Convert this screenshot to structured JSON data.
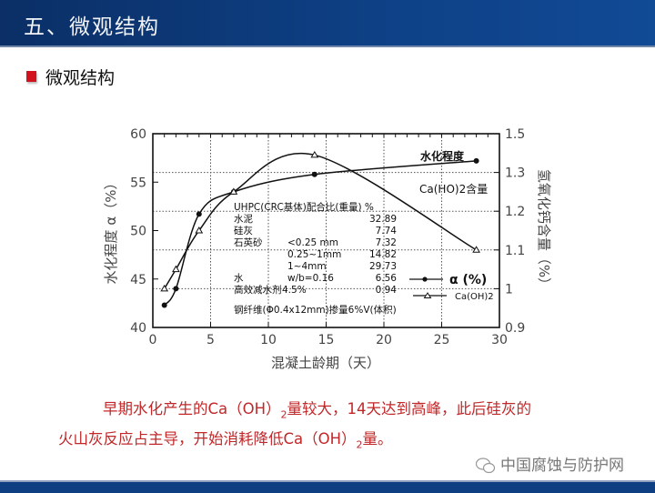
{
  "header": {
    "title": "五、微观结构"
  },
  "section": {
    "subtitle": "微观结构"
  },
  "chart_data": {
    "type": "line",
    "x": [
      1,
      2,
      4,
      7,
      14,
      28
    ],
    "xlabel": "混凝土龄期（天）",
    "ylabel_left": "水化程度 α（%）",
    "ylabel_right": "氢氧化钙含量（%）",
    "xlim": [
      0,
      30
    ],
    "ylim_left": [
      40,
      60
    ],
    "xticks": [
      "0",
      "5",
      "10",
      "15",
      "20",
      "25",
      "30"
    ],
    "yticks_left": [
      "40",
      "45",
      "50",
      "55",
      "60"
    ],
    "yticks_right": [
      "0.9",
      "1",
      "1.1",
      "1.2",
      "1.3",
      "1.5"
    ],
    "grid": "dotted partial",
    "series": [
      {
        "name": "α (%)",
        "axis": "left",
        "marker": "filled-circle",
        "values": [
          42.3,
          44.0,
          51.7,
          54.0,
          55.8,
          57.2
        ]
      },
      {
        "name": "Ca(OH)2",
        "axis": "right",
        "marker": "open-triangle",
        "values": [
          1.0,
          1.05,
          1.15,
          1.25,
          1.39,
          1.1
        ]
      }
    ],
    "annotations": {
      "alpha_curve": "水化程度",
      "ca_curve": "Ca(HO)2含量"
    },
    "legend": {
      "placement": "right",
      "alpha": "α (%)",
      "ca": "Ca(OH)2"
    },
    "mix_table": {
      "title": "UHPC(CRC基体)配合比(重量) %",
      "rows": [
        [
          "水泥",
          "",
          "32.89"
        ],
        [
          "硅灰",
          "",
          "7.74"
        ],
        [
          "石英砂",
          "<0.25 mm",
          "7.32"
        ],
        [
          "",
          "0.25~1mm",
          "14.82"
        ],
        [
          "",
          "1~4mm",
          "29.73"
        ],
        [
          "水",
          "w/b=0.16",
          "6.56"
        ],
        [
          "高效减水剂",
          "4.5%",
          "0.94"
        ]
      ],
      "footer": "钢纤维(Φ0.4x12mm)掺量6%V(体积)"
    }
  },
  "notes": {
    "line1_a": "早期水化产生的Ca（OH）",
    "line1_sub": "2",
    "line1_b": "量较大，14天达到高峰，此后硅灰的",
    "line2_a": "火山灰反应占主导，开始消耗降低Ca（OH）",
    "line2_sub": "2",
    "line2_b": "量。"
  },
  "watermark": {
    "text": "中国腐蚀与防护网",
    "icon": "wechat-icon"
  },
  "colors": {
    "header": "#0e4187",
    "bullet": "#d2121d",
    "note_text": "#c0282a"
  }
}
